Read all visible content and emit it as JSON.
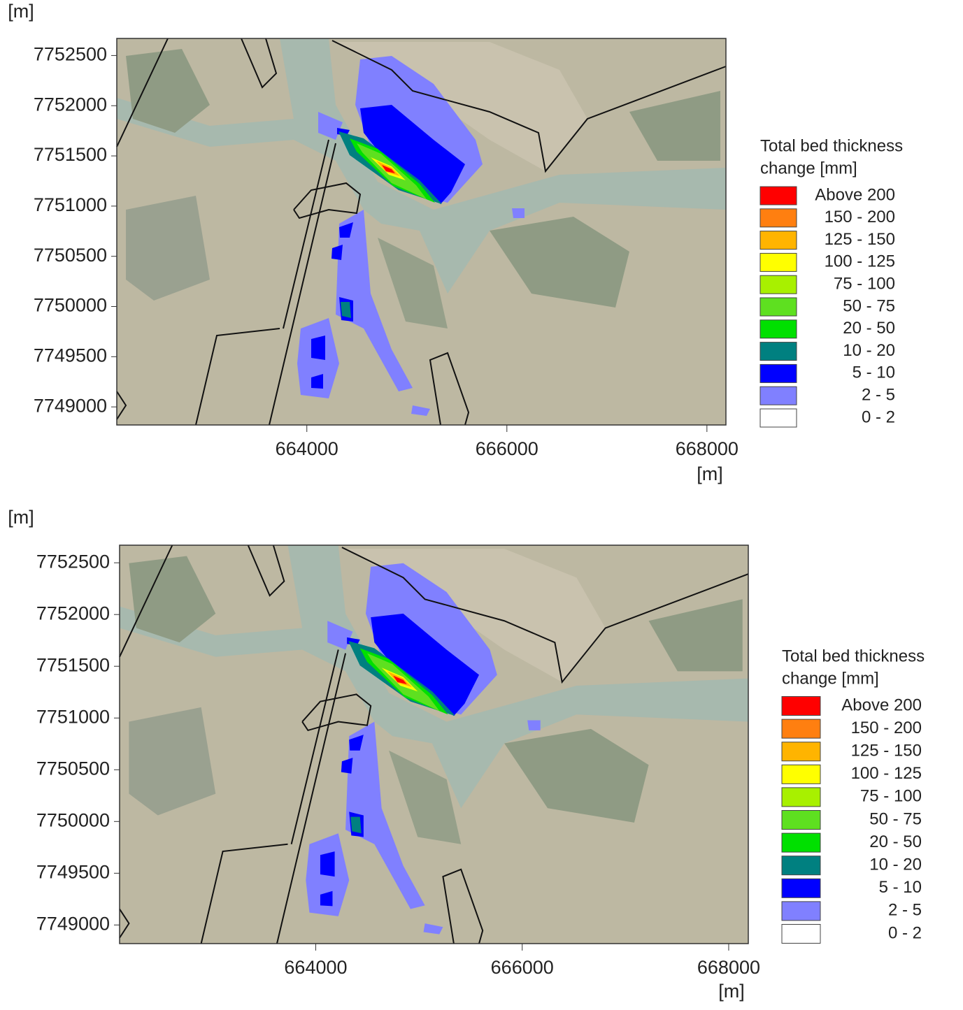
{
  "chart_data": [
    {
      "type": "map",
      "ylabel": "[m]",
      "xlabel": "[m]",
      "xlim": [
        662100,
        668190
      ],
      "ylim": [
        7748820,
        7752670
      ],
      "xticks": [
        664000,
        666000,
        668000
      ],
      "yticks": [
        7749000,
        7749500,
        7750000,
        7750500,
        7751000,
        7751500,
        7752000,
        7752500
      ],
      "legend_title": [
        "Total bed thickness",
        "change [mm]"
      ],
      "legend": [
        {
          "label": "Above 200",
          "color": "#ff0000"
        },
        {
          "label": "150 - 200",
          "color": "#ff7f10"
        },
        {
          "label": "125 - 150",
          "color": "#ffb400"
        },
        {
          "label": "100 - 125",
          "color": "#ffff00"
        },
        {
          "label": "75 - 100",
          "color": "#a8f000"
        },
        {
          "label": "50 - 75",
          "color": "#5ee020"
        },
        {
          "label": "20 - 50",
          "color": "#00e000"
        },
        {
          "label": "10 - 20",
          "color": "#008080"
        },
        {
          "label": "5 - 10",
          "color": "#0000ff"
        },
        {
          "label": "2 - 5",
          "color": "#8080ff"
        },
        {
          "label": "0 - 2",
          "color": "#ffffff"
        }
      ]
    },
    {
      "type": "map",
      "ylabel": "[m]",
      "xlabel": "[m]",
      "xlim": [
        662100,
        668190
      ],
      "ylim": [
        7748820,
        7752670
      ],
      "xticks": [
        664000,
        666000,
        668000
      ],
      "yticks": [
        7749000,
        7749500,
        7750000,
        7750500,
        7751000,
        7751500,
        7752000,
        7752500
      ],
      "legend_title": [
        "Total bed thickness",
        "change [mm]"
      ],
      "legend": [
        {
          "label": "Above 200",
          "color": "#ff0000"
        },
        {
          "label": "150 - 200",
          "color": "#ff7f10"
        },
        {
          "label": "125 - 150",
          "color": "#ffb400"
        },
        {
          "label": "100 - 125",
          "color": "#ffff00"
        },
        {
          "label": "75 - 100",
          "color": "#a8f000"
        },
        {
          "label": "50 - 75",
          "color": "#5ee020"
        },
        {
          "label": "20 - 50",
          "color": "#00e000"
        },
        {
          "label": "10 - 20",
          "color": "#008080"
        },
        {
          "label": "5 - 10",
          "color": "#0000ff"
        },
        {
          "label": "2 - 5",
          "color": "#8080ff"
        },
        {
          "label": "0 - 2",
          "color": "#ffffff"
        }
      ]
    }
  ]
}
